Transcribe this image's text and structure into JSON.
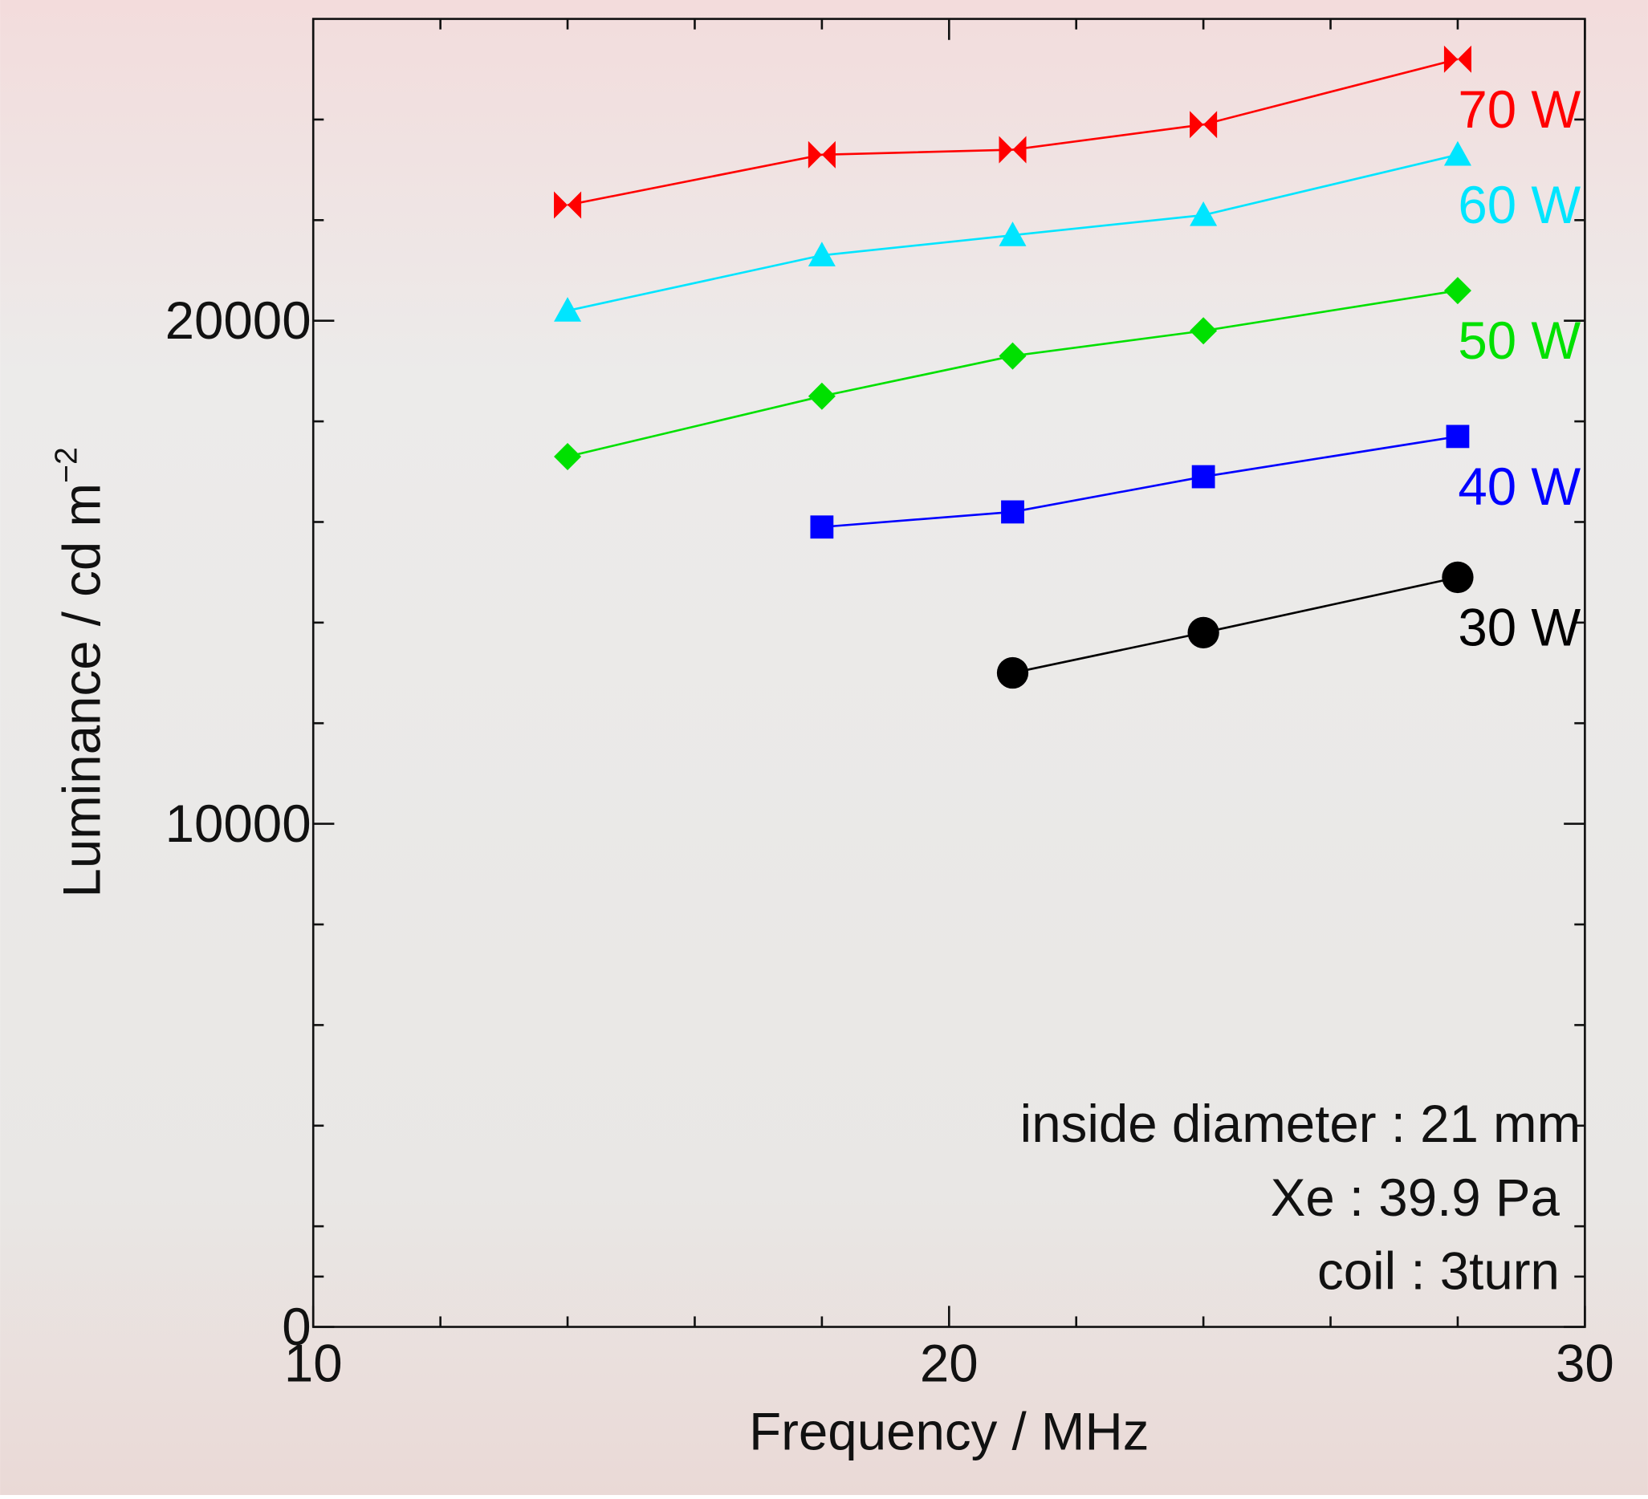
{
  "chart_data": {
    "type": "line",
    "xlabel": "Frequency  /  MHz",
    "ylabel": "Luminance  /  cd m",
    "ylabel_superscript": "−2",
    "xlim": [
      10,
      30
    ],
    "xticks": [
      10,
      20,
      30
    ],
    "xminorticks": [
      12,
      14,
      16,
      18,
      22,
      24,
      26,
      28
    ],
    "ylim": [
      0,
      26000
    ],
    "yticks": [
      0,
      10000,
      20000
    ],
    "yminorticks": [
      1000,
      2000,
      4000,
      6000,
      8000,
      12000,
      14000,
      16000,
      18000,
      22000,
      24000
    ],
    "series": [
      {
        "name": "70 W",
        "color": "#ff0000",
        "marker": "bowtie",
        "x": [
          14,
          18,
          21,
          24,
          28
        ],
        "values": [
          22300,
          23300,
          23400,
          23900,
          25200
        ]
      },
      {
        "name": "60 W",
        "color": "#00e5ff",
        "marker": "triangle",
        "x": [
          14,
          18,
          21,
          24,
          28
        ],
        "values": [
          20200,
          21300,
          21700,
          22100,
          23300
        ]
      },
      {
        "name": "50 W",
        "color": "#00e000",
        "marker": "diamond",
        "x": [
          14,
          18,
          21,
          24,
          28
        ],
        "values": [
          17300,
          18500,
          19300,
          19800,
          20600
        ]
      },
      {
        "name": "40 W",
        "color": "#0000ff",
        "marker": "square",
        "x": [
          18,
          21,
          24,
          28
        ],
        "values": [
          15900,
          16200,
          16900,
          17700
        ]
      },
      {
        "name": "30 W",
        "color": "#000000",
        "marker": "circle",
        "x": [
          21,
          24,
          28
        ],
        "values": [
          13000,
          13800,
          14900
        ]
      }
    ],
    "annotations": [
      "inside diameter : 21 mm",
      "Xe : 39.9 Pa",
      "coil : 3turn"
    ]
  }
}
